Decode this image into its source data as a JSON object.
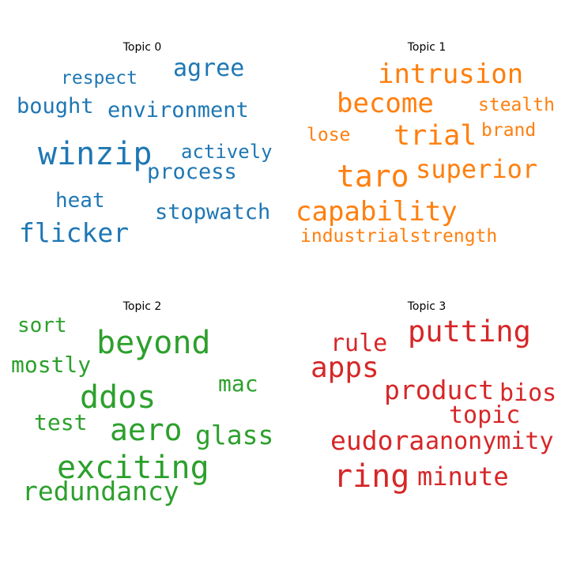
{
  "colors": {
    "topic_0": "#1f77b4",
    "topic_1": "#ff7f0e",
    "topic_2": "#2ca02c",
    "topic_3": "#d62728"
  },
  "topics": [
    {
      "title": "Topic 0",
      "words": [
        "winzip",
        "flicker",
        "environment",
        "process",
        "stopwatch",
        "agree",
        "bought",
        "actively",
        "heat",
        "respect"
      ]
    },
    {
      "title": "Topic 1",
      "words": [
        "taro",
        "capability",
        "superior",
        "intrusion",
        "become",
        "trial",
        "industrialstrength",
        "stealth",
        "brand",
        "lose"
      ]
    },
    {
      "title": "Topic 2",
      "words": [
        "exciting",
        "beyond",
        "ddos",
        "aero",
        "redundancy",
        "glass",
        "mostly",
        "mac",
        "test",
        "sort"
      ]
    },
    {
      "title": "Topic 3",
      "words": [
        "ring",
        "putting",
        "apps",
        "eudora",
        "anonymity",
        "product",
        "minute",
        "bios",
        "topic",
        "rule"
      ]
    }
  ]
}
